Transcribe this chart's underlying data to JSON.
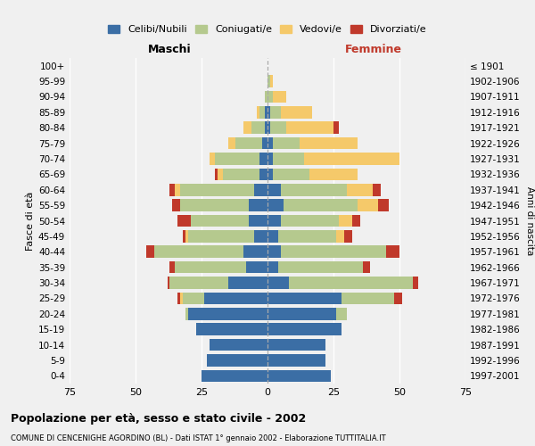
{
  "age_groups": [
    "0-4",
    "5-9",
    "10-14",
    "15-19",
    "20-24",
    "25-29",
    "30-34",
    "35-39",
    "40-44",
    "45-49",
    "50-54",
    "55-59",
    "60-64",
    "65-69",
    "70-74",
    "75-79",
    "80-84",
    "85-89",
    "90-94",
    "95-99",
    "100+"
  ],
  "birth_years": [
    "1997-2001",
    "1992-1996",
    "1987-1991",
    "1982-1986",
    "1977-1981",
    "1972-1976",
    "1967-1971",
    "1962-1966",
    "1957-1961",
    "1952-1956",
    "1947-1951",
    "1942-1946",
    "1937-1941",
    "1932-1936",
    "1927-1931",
    "1922-1926",
    "1917-1921",
    "1912-1916",
    "1907-1911",
    "1902-1906",
    "≤ 1901"
  ],
  "maschi": {
    "celibi": [
      25,
      23,
      22,
      27,
      30,
      24,
      15,
      8,
      9,
      5,
      7,
      7,
      5,
      3,
      3,
      2,
      1,
      1,
      0,
      0,
      0
    ],
    "coniugati": [
      0,
      0,
      0,
      0,
      1,
      8,
      22,
      27,
      34,
      25,
      22,
      26,
      28,
      14,
      17,
      10,
      5,
      2,
      1,
      0,
      0
    ],
    "vedovi": [
      0,
      0,
      0,
      0,
      0,
      1,
      0,
      0,
      0,
      1,
      0,
      0,
      2,
      2,
      2,
      3,
      3,
      1,
      0,
      0,
      0
    ],
    "divorziati": [
      0,
      0,
      0,
      0,
      0,
      1,
      1,
      2,
      3,
      1,
      5,
      3,
      2,
      1,
      0,
      0,
      0,
      0,
      0,
      0,
      0
    ]
  },
  "femmine": {
    "nubili": [
      24,
      22,
      22,
      28,
      26,
      28,
      8,
      4,
      5,
      4,
      5,
      6,
      5,
      2,
      2,
      2,
      1,
      1,
      0,
      0,
      0
    ],
    "coniugate": [
      0,
      0,
      0,
      0,
      4,
      20,
      47,
      32,
      40,
      22,
      22,
      28,
      25,
      14,
      12,
      10,
      6,
      4,
      2,
      1,
      0
    ],
    "vedove": [
      0,
      0,
      0,
      0,
      0,
      0,
      0,
      0,
      0,
      3,
      5,
      8,
      10,
      18,
      36,
      22,
      18,
      12,
      5,
      1,
      0
    ],
    "divorziate": [
      0,
      0,
      0,
      0,
      0,
      3,
      2,
      3,
      5,
      3,
      3,
      4,
      3,
      0,
      0,
      0,
      2,
      0,
      0,
      0,
      0
    ]
  },
  "colors": {
    "celibi_nubili": "#3b6ea5",
    "coniugati": "#b5c98e",
    "vedovi": "#f5c96a",
    "divorziati": "#c0392b"
  },
  "xlim": 75,
  "title": "Popolazione per età, sesso e stato civile - 2002",
  "subtitle": "COMUNE DI CENCENIGHE AGORDINO (BL) - Dati ISTAT 1° gennaio 2002 - Elaborazione TUTTITALIA.IT",
  "ylabel_left": "Fasce di età",
  "ylabel_right": "Anni di nascita",
  "xlabel_left": "Maschi",
  "xlabel_right": "Femmine",
  "bg_color": "#f0f0f0",
  "legend_labels": [
    "Celibi/Nubili",
    "Coniugati/e",
    "Vedovi/e",
    "Divorziati/e"
  ]
}
